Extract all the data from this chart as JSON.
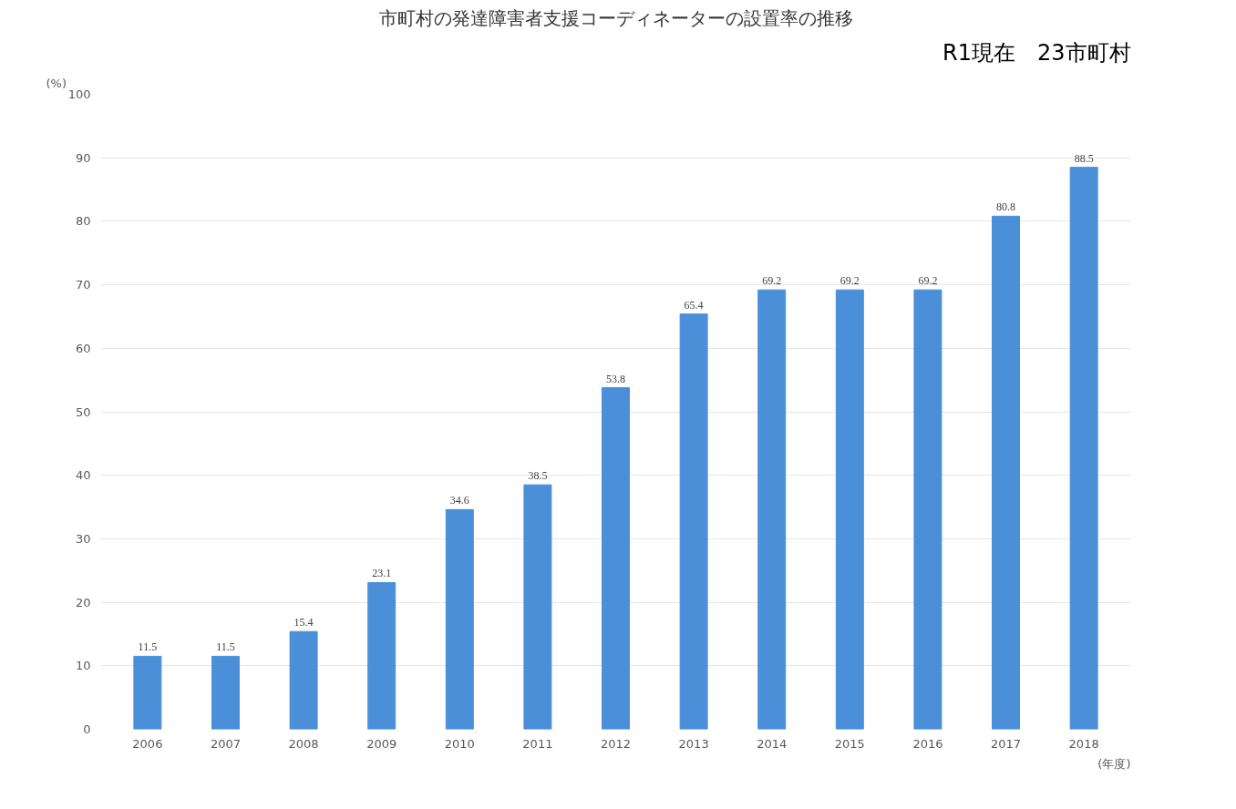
{
  "chart_data": {
    "type": "bar",
    "title": "市町村の発達障害者支援コーディネーターの設置率の推移",
    "ylabel": "(%)",
    "xlabel": "(年度)",
    "categories": [
      "2006",
      "2007",
      "2008",
      "2009",
      "2010",
      "2011",
      "2012",
      "2013",
      "2014",
      "2015",
      "2016",
      "2017",
      "2018"
    ],
    "values": [
      11.5,
      11.5,
      15.4,
      23.1,
      34.6,
      38.5,
      53.8,
      65.4,
      69.2,
      69.2,
      69.2,
      80.8,
      88.5
    ],
    "color": "#4a8fd8",
    "ylim": [
      0,
      100
    ],
    "yticks": [
      0,
      10,
      20,
      30,
      40,
      50,
      60,
      70,
      80,
      90,
      100
    ],
    "grid": "y",
    "data_labels": true,
    "annotations": [
      "R1現在　23市町村"
    ]
  }
}
